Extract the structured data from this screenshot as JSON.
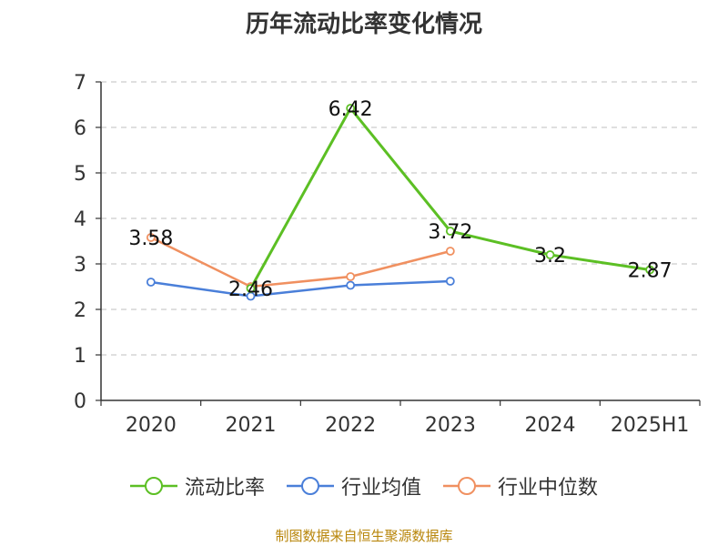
{
  "title": "历年流动比率变化情况",
  "source": "制图数据来自恒生聚源数据库",
  "colors": {
    "current_ratio": "#5cbf24",
    "industry_mean": "#4a7fd9",
    "industry_median": "#f09060"
  },
  "chart_data": {
    "type": "line",
    "categories": [
      "2020",
      "2021",
      "2022",
      "2023",
      "2024",
      "2025H1"
    ],
    "ylim": [
      0,
      7
    ],
    "yticks": [
      0,
      1,
      2,
      3,
      4,
      5,
      6,
      7
    ],
    "grid": true,
    "legend_position": "bottom",
    "series": [
      {
        "name": "流动比率",
        "key": "current_ratio",
        "values": [
          null,
          2.46,
          6.42,
          3.72,
          3.2,
          2.87
        ],
        "labels": [
          "",
          "2.46",
          "6.42",
          "3.72",
          "3.2",
          "2.87"
        ]
      },
      {
        "name": "行业均值",
        "key": "industry_mean",
        "values": [
          2.6,
          2.29,
          2.53,
          2.62,
          null,
          null
        ]
      },
      {
        "name": "行业中位数",
        "key": "industry_median",
        "values": [
          3.58,
          2.5,
          2.72,
          3.28,
          null,
          null
        ],
        "labels": [
          "3.58",
          "",
          "",
          "",
          "",
          ""
        ]
      }
    ]
  }
}
